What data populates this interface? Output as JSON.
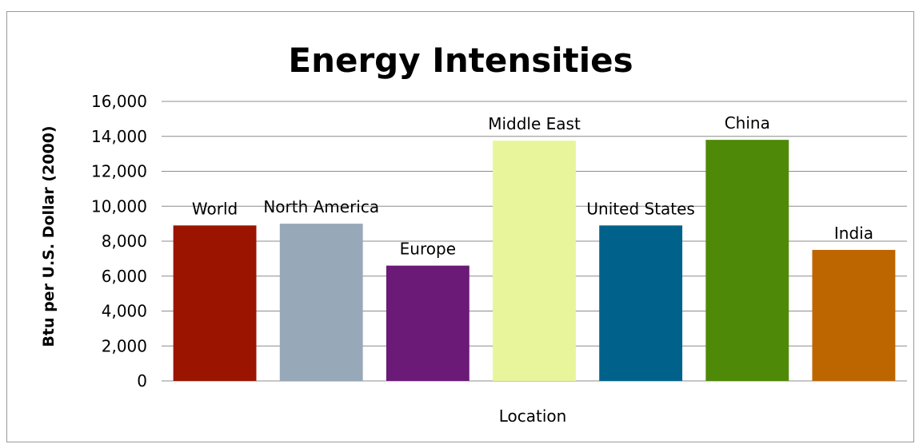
{
  "chart_data": {
    "type": "bar",
    "title": "Energy Intensities",
    "xlabel": "Location",
    "ylabel": "Btu per U.S. Dollar (2000)",
    "categories": [
      "World",
      "North America",
      "Europe",
      "Middle East",
      "United States",
      "China",
      "India"
    ],
    "values": [
      8900,
      9000,
      6600,
      13750,
      8900,
      13800,
      7500
    ],
    "colors": [
      "#9b1400",
      "#97a8b8",
      "#6b1a78",
      "#e8f59a",
      "#00628a",
      "#4e8a08",
      "#bd6600"
    ],
    "ylim": [
      0,
      16000
    ],
    "yticks": [
      "0",
      "2,000",
      "4,000",
      "6,000",
      "8,000",
      "10,000",
      "12,000",
      "14,000",
      "16,000"
    ],
    "grid": true,
    "legend": "none"
  }
}
